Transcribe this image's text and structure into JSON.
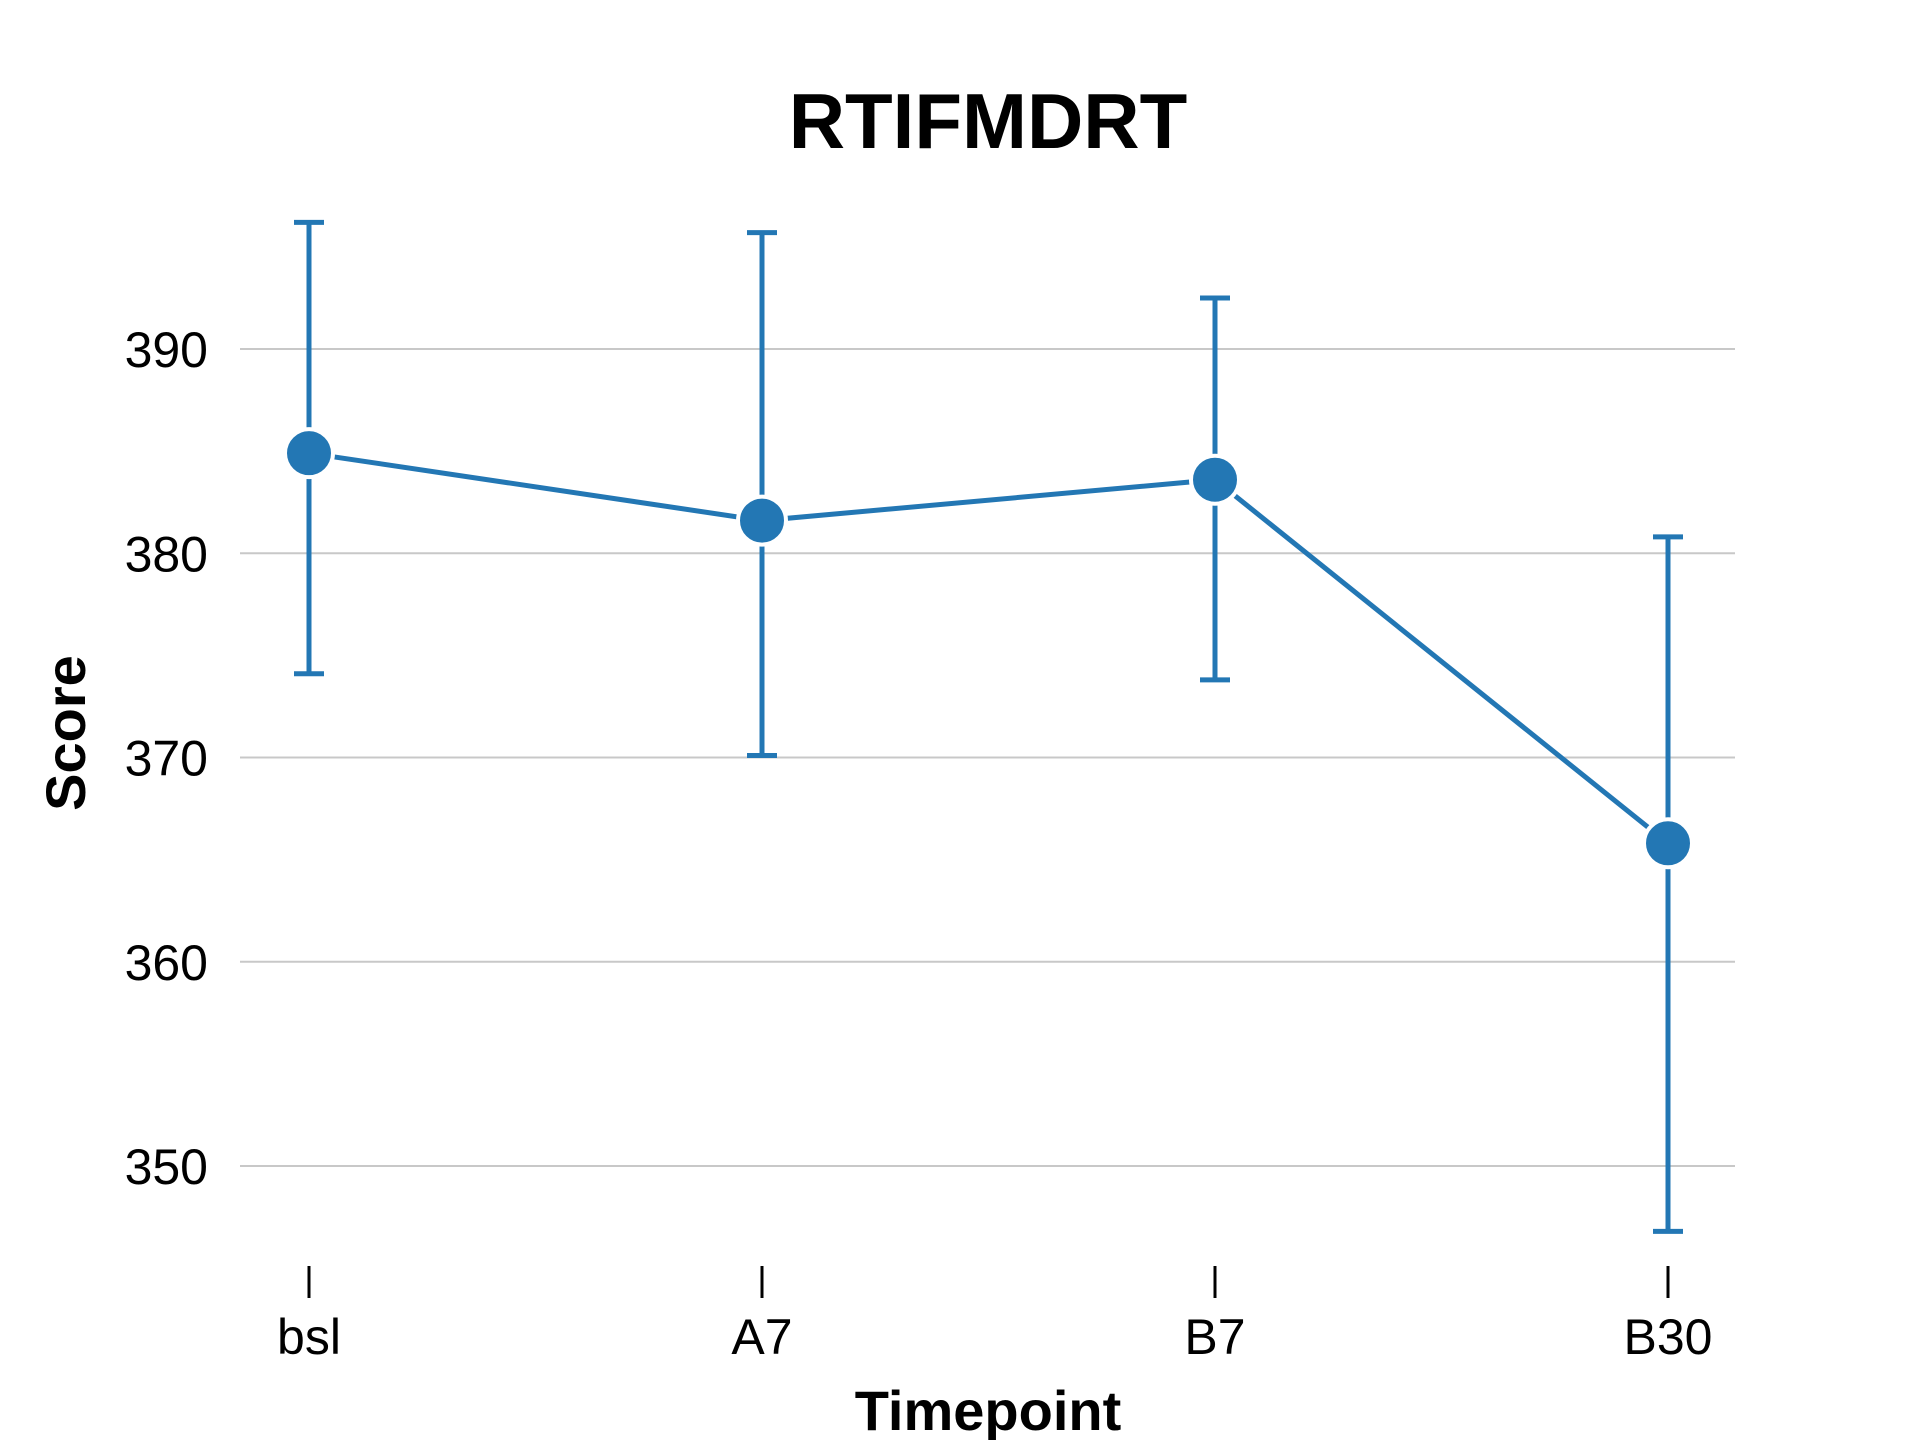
{
  "chart_data": {
    "type": "line",
    "title": "RTIFMDRT",
    "xlabel": "Timepoint",
    "ylabel": "Score",
    "categories": [
      "bsl",
      "A7",
      "B7",
      "B30"
    ],
    "series": [
      {
        "values": [
          384.9,
          381.6,
          383.6,
          365.8
        ],
        "error_low": [
          374.1,
          370.1,
          373.8,
          346.8
        ],
        "error_high": [
          396.2,
          395.7,
          392.5,
          380.8
        ],
        "color": "#2377b4"
      }
    ],
    "yticks": [
      350,
      360,
      370,
      380,
      390
    ],
    "ylim": [
      344,
      398
    ],
    "grid": "horizontal",
    "legend": "none"
  }
}
